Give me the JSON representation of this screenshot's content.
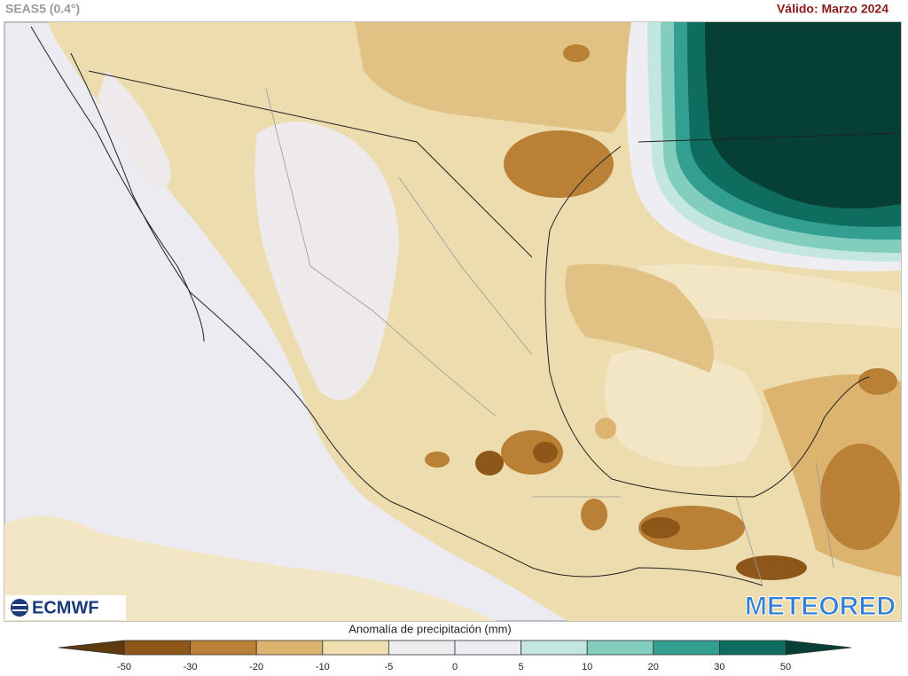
{
  "header": {
    "model": "SEAS5 (0.4°)",
    "valid": "Válido: Marzo 2024"
  },
  "logos": {
    "left": "ECMWF",
    "right": "METEORED"
  },
  "legend": {
    "title": "Anomalía de precipitación (mm)",
    "ticks": [
      -50,
      -30,
      -20,
      -10,
      -5,
      0,
      5,
      10,
      20,
      30,
      50
    ],
    "colors": [
      "#5e3a0e",
      "#8c5719",
      "#b98036",
      "#dcb46f",
      "#f0dfae",
      "#eeecee",
      "#edecf2",
      "#c3e7de",
      "#82cdbd",
      "#329f90",
      "#0f6d60",
      "#063f36"
    ]
  }
}
